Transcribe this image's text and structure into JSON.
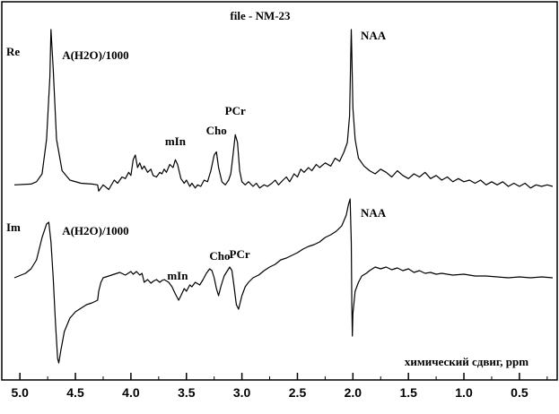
{
  "chart_data": {
    "type": "line",
    "title": "file -  NM-23",
    "xlabel": "химический сдвиг, ppm",
    "xlim": [
      5.05,
      0.2
    ],
    "x_reversed": true,
    "x_ticks": [
      "5.0",
      "4.5",
      "4.0",
      "3.5",
      "3.0",
      "2.5",
      "2.0",
      "1.5",
      "1.0",
      "0.5"
    ],
    "x_tick_values": [
      5.0,
      4.5,
      4.0,
      3.5,
      3.0,
      2.5,
      2.0,
      1.5,
      1.0,
      0.5
    ],
    "series": [
      {
        "name": "Re",
        "panel_offset": 0,
        "points": [
          [
            5.05,
            1.0
          ],
          [
            4.9,
            1.5
          ],
          [
            4.85,
            3
          ],
          [
            4.8,
            8
          ],
          [
            4.76,
            30
          ],
          [
            4.73,
            70
          ],
          [
            4.72,
            100
          ],
          [
            4.7,
            75
          ],
          [
            4.67,
            30
          ],
          [
            4.62,
            10
          ],
          [
            4.55,
            4
          ],
          [
            4.45,
            2
          ],
          [
            4.35,
            1.5
          ],
          [
            4.3,
            1.0
          ],
          [
            4.29,
            -3
          ],
          [
            4.25,
            1
          ],
          [
            4.2,
            -2
          ],
          [
            4.15,
            4
          ],
          [
            4.12,
            2
          ],
          [
            4.08,
            6
          ],
          [
            4.05,
            5
          ],
          [
            4.02,
            9
          ],
          [
            4.0,
            7
          ],
          [
            3.98,
            17
          ],
          [
            3.96,
            20
          ],
          [
            3.94,
            12
          ],
          [
            3.92,
            15
          ],
          [
            3.9,
            11
          ],
          [
            3.88,
            13
          ],
          [
            3.85,
            9
          ],
          [
            3.82,
            11
          ],
          [
            3.8,
            7
          ],
          [
            3.77,
            6
          ],
          [
            3.74,
            9
          ],
          [
            3.72,
            8
          ],
          [
            3.7,
            11
          ],
          [
            3.68,
            9
          ],
          [
            3.65,
            14
          ],
          [
            3.62,
            12
          ],
          [
            3.6,
            17
          ],
          [
            3.58,
            14
          ],
          [
            3.55,
            5
          ],
          [
            3.52,
            2
          ],
          [
            3.5,
            4
          ],
          [
            3.47,
            0
          ],
          [
            3.45,
            2
          ],
          [
            3.42,
            -1
          ],
          [
            3.4,
            1
          ],
          [
            3.37,
            0
          ],
          [
            3.34,
            4
          ],
          [
            3.31,
            3
          ],
          [
            3.28,
            10
          ],
          [
            3.25,
            20
          ],
          [
            3.23,
            22
          ],
          [
            3.21,
            12
          ],
          [
            3.18,
            3
          ],
          [
            3.15,
            1
          ],
          [
            3.12,
            4
          ],
          [
            3.1,
            8
          ],
          [
            3.08,
            20
          ],
          [
            3.06,
            33
          ],
          [
            3.04,
            28
          ],
          [
            3.02,
            10
          ],
          [
            3.0,
            3
          ],
          [
            2.97,
            1
          ],
          [
            2.94,
            3
          ],
          [
            2.9,
            0
          ],
          [
            2.87,
            2
          ],
          [
            2.84,
            -1
          ],
          [
            2.8,
            1
          ],
          [
            2.77,
            0
          ],
          [
            2.73,
            2
          ],
          [
            2.7,
            4
          ],
          [
            2.67,
            1
          ],
          [
            2.63,
            4
          ],
          [
            2.6,
            6
          ],
          [
            2.57,
            3
          ],
          [
            2.53,
            8
          ],
          [
            2.5,
            6
          ],
          [
            2.47,
            11
          ],
          [
            2.44,
            9
          ],
          [
            2.4,
            12
          ],
          [
            2.37,
            10
          ],
          [
            2.33,
            14
          ],
          [
            2.3,
            12
          ],
          [
            2.25,
            15
          ],
          [
            2.2,
            13
          ],
          [
            2.16,
            18
          ],
          [
            2.12,
            16
          ],
          [
            2.08,
            22
          ],
          [
            2.05,
            28
          ],
          [
            2.03,
            45
          ],
          [
            2.02,
            80
          ],
          [
            2.015,
            100
          ],
          [
            2.01,
            85
          ],
          [
            2.0,
            50
          ],
          [
            1.98,
            30
          ],
          [
            1.95,
            18
          ],
          [
            1.9,
            13
          ],
          [
            1.85,
            10
          ],
          [
            1.8,
            8
          ],
          [
            1.75,
            11
          ],
          [
            1.7,
            9
          ],
          [
            1.65,
            6
          ],
          [
            1.6,
            10
          ],
          [
            1.55,
            7
          ],
          [
            1.5,
            5
          ],
          [
            1.45,
            8
          ],
          [
            1.4,
            6
          ],
          [
            1.35,
            9
          ],
          [
            1.3,
            5
          ],
          [
            1.25,
            7
          ],
          [
            1.2,
            4
          ],
          [
            1.15,
            6
          ],
          [
            1.1,
            3
          ],
          [
            1.05,
            5
          ],
          [
            1.0,
            3
          ],
          [
            0.95,
            4
          ],
          [
            0.9,
            2
          ],
          [
            0.85,
            4
          ],
          [
            0.8,
            1
          ],
          [
            0.75,
            3
          ],
          [
            0.7,
            1
          ],
          [
            0.65,
            3
          ],
          [
            0.6,
            0
          ],
          [
            0.55,
            2
          ],
          [
            0.5,
            0
          ],
          [
            0.45,
            2
          ],
          [
            0.4,
            -1
          ],
          [
            0.35,
            1
          ],
          [
            0.3,
            0
          ],
          [
            0.25,
            1
          ],
          [
            0.2,
            0
          ]
        ]
      },
      {
        "name": "Im",
        "panel_offset": 1,
        "points": [
          [
            5.05,
            0
          ],
          [
            4.95,
            5
          ],
          [
            4.9,
            10
          ],
          [
            4.85,
            20
          ],
          [
            4.8,
            45
          ],
          [
            4.76,
            60
          ],
          [
            4.74,
            62
          ],
          [
            4.72,
            40
          ],
          [
            4.7,
            0
          ],
          [
            4.68,
            -50
          ],
          [
            4.66,
            -90
          ],
          [
            4.65,
            -95
          ],
          [
            4.63,
            -80
          ],
          [
            4.6,
            -60
          ],
          [
            4.55,
            -45
          ],
          [
            4.5,
            -38
          ],
          [
            4.45,
            -34
          ],
          [
            4.4,
            -30
          ],
          [
            4.35,
            -28
          ],
          [
            4.3,
            -25
          ],
          [
            4.29,
            -15
          ],
          [
            4.27,
            -5
          ],
          [
            4.25,
            0
          ],
          [
            4.2,
            2
          ],
          [
            4.15,
            4
          ],
          [
            4.1,
            6
          ],
          [
            4.05,
            3
          ],
          [
            4.0,
            7
          ],
          [
            3.98,
            4
          ],
          [
            3.95,
            7
          ],
          [
            3.92,
            3
          ],
          [
            3.9,
            5
          ],
          [
            3.88,
            -5
          ],
          [
            3.85,
            -2
          ],
          [
            3.82,
            -6
          ],
          [
            3.8,
            -4
          ],
          [
            3.77,
            -2
          ],
          [
            3.74,
            -5
          ],
          [
            3.72,
            -3
          ],
          [
            3.7,
            -2
          ],
          [
            3.66,
            -5
          ],
          [
            3.63,
            -10
          ],
          [
            3.6,
            -18
          ],
          [
            3.57,
            -25
          ],
          [
            3.55,
            -20
          ],
          [
            3.52,
            -12
          ],
          [
            3.5,
            -15
          ],
          [
            3.47,
            -8
          ],
          [
            3.45,
            -10
          ],
          [
            3.42,
            -5
          ],
          [
            3.38,
            -8
          ],
          [
            3.35,
            -2
          ],
          [
            3.32,
            5
          ],
          [
            3.29,
            10
          ],
          [
            3.27,
            8
          ],
          [
            3.25,
            0
          ],
          [
            3.23,
            -12
          ],
          [
            3.21,
            -20
          ],
          [
            3.19,
            -10
          ],
          [
            3.16,
            2
          ],
          [
            3.13,
            8
          ],
          [
            3.11,
            12
          ],
          [
            3.09,
            8
          ],
          [
            3.07,
            -10
          ],
          [
            3.05,
            -30
          ],
          [
            3.03,
            -35
          ],
          [
            3.0,
            -20
          ],
          [
            2.97,
            -10
          ],
          [
            2.94,
            -5
          ],
          [
            2.9,
            0
          ],
          [
            2.85,
            3
          ],
          [
            2.8,
            8
          ],
          [
            2.75,
            12
          ],
          [
            2.7,
            15
          ],
          [
            2.65,
            20
          ],
          [
            2.6,
            22
          ],
          [
            2.55,
            25
          ],
          [
            2.5,
            28
          ],
          [
            2.45,
            32
          ],
          [
            2.4,
            35
          ],
          [
            2.35,
            37
          ],
          [
            2.3,
            40
          ],
          [
            2.25,
            45
          ],
          [
            2.2,
            48
          ],
          [
            2.15,
            52
          ],
          [
            2.1,
            58
          ],
          [
            2.06,
            70
          ],
          [
            2.04,
            82
          ],
          [
            2.025,
            88
          ],
          [
            2.015,
            40
          ],
          [
            2.01,
            -30
          ],
          [
            2.005,
            -65
          ],
          [
            2.0,
            -40
          ],
          [
            1.98,
            -15
          ],
          [
            1.95,
            -5
          ],
          [
            1.92,
            2
          ],
          [
            1.88,
            5
          ],
          [
            1.85,
            8
          ],
          [
            1.8,
            12
          ],
          [
            1.75,
            10
          ],
          [
            1.7,
            12
          ],
          [
            1.65,
            9
          ],
          [
            1.6,
            11
          ],
          [
            1.55,
            8
          ],
          [
            1.5,
            10
          ],
          [
            1.45,
            6
          ],
          [
            1.4,
            8
          ],
          [
            1.35,
            5
          ],
          [
            1.3,
            6
          ],
          [
            1.25,
            4
          ],
          [
            1.2,
            5
          ],
          [
            1.1,
            3
          ],
          [
            1.0,
            4
          ],
          [
            0.9,
            2
          ],
          [
            0.8,
            2
          ],
          [
            0.7,
            1
          ],
          [
            0.6,
            0
          ],
          [
            0.5,
            1
          ],
          [
            0.4,
            0
          ],
          [
            0.3,
            1
          ],
          [
            0.2,
            0
          ]
        ]
      }
    ],
    "annotations": [
      {
        "text": "A(H2O)/1000",
        "panel": "Re",
        "x": 4.62
      },
      {
        "text": "mIn",
        "panel": "Re",
        "x": 3.6
      },
      {
        "text": "Cho",
        "panel": "Re",
        "x": 3.23
      },
      {
        "text": "PCr",
        "panel": "Re",
        "x": 3.06
      },
      {
        "text": "NAA",
        "panel": "Re",
        "x": 1.93
      },
      {
        "text": "A(H2O)/1000",
        "panel": "Im",
        "x": 4.62
      },
      {
        "text": "mIn",
        "panel": "Im",
        "x": 3.58
      },
      {
        "text": "Cho",
        "panel": "Im",
        "x": 3.2
      },
      {
        "text": "PCr",
        "panel": "Im",
        "x": 3.02
      },
      {
        "text": "NAA",
        "panel": "Im",
        "x": 1.93
      }
    ],
    "panel_labels": [
      "Re",
      "Im"
    ],
    "grid": false,
    "legend": "none"
  }
}
